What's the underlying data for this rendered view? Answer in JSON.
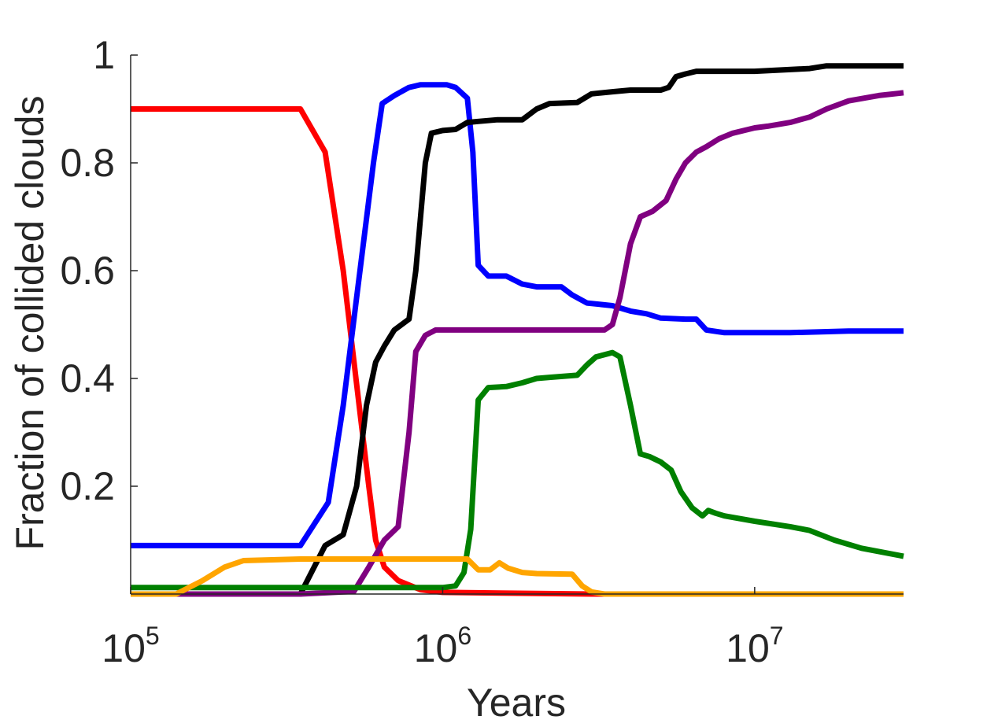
{
  "chart_data": {
    "type": "line",
    "title": "",
    "xlabel": "Years",
    "ylabel": "Fraction of collided clouds",
    "xscale": "log",
    "xlim": [
      100000,
      30000000
    ],
    "ylim": [
      0,
      1
    ],
    "x_ticks": [
      {
        "value": 100000,
        "base": "10",
        "exp": "5"
      },
      {
        "value": 1000000,
        "base": "10",
        "exp": "6"
      },
      {
        "value": 10000000,
        "base": "10",
        "exp": "7"
      }
    ],
    "y_ticks": [
      {
        "value": 0.2,
        "label": "0.2"
      },
      {
        "value": 0.4,
        "label": "0.4"
      },
      {
        "value": 0.6,
        "label": "0.6"
      },
      {
        "value": 0.8,
        "label": "0.8"
      },
      {
        "value": 1,
        "label": "1"
      }
    ],
    "grid": false,
    "legend": "none",
    "series": [
      {
        "color": "#ff0000",
        "points": [
          [
            100000,
            0.9
          ],
          [
            350000,
            0.9
          ],
          [
            420000,
            0.82
          ],
          [
            480000,
            0.6
          ],
          [
            540000,
            0.35
          ],
          [
            580000,
            0.2
          ],
          [
            610000,
            0.1
          ],
          [
            650000,
            0.05
          ],
          [
            720000,
            0.025
          ],
          [
            850000,
            0.008
          ],
          [
            1000000,
            0.003
          ],
          [
            3000000,
            0.0
          ],
          [
            30000000,
            0.0
          ]
        ]
      },
      {
        "color": "#0000ff",
        "points": [
          [
            100000,
            0.09
          ],
          [
            350000,
            0.09
          ],
          [
            430000,
            0.17
          ],
          [
            480000,
            0.35
          ],
          [
            530000,
            0.55
          ],
          [
            600000,
            0.8
          ],
          [
            640000,
            0.91
          ],
          [
            700000,
            0.925
          ],
          [
            780000,
            0.94
          ],
          [
            850000,
            0.945
          ],
          [
            950000,
            0.945
          ],
          [
            1030000,
            0.945
          ],
          [
            1100000,
            0.94
          ],
          [
            1200000,
            0.92
          ],
          [
            1250000,
            0.82
          ],
          [
            1300000,
            0.61
          ],
          [
            1400000,
            0.59
          ],
          [
            1600000,
            0.59
          ],
          [
            1800000,
            0.575
          ],
          [
            2000000,
            0.57
          ],
          [
            2400000,
            0.57
          ],
          [
            2600000,
            0.555
          ],
          [
            2900000,
            0.54
          ],
          [
            3500000,
            0.535
          ],
          [
            4000000,
            0.525
          ],
          [
            4500000,
            0.52
          ],
          [
            5000000,
            0.512
          ],
          [
            6000000,
            0.51
          ],
          [
            6500000,
            0.51
          ],
          [
            7000000,
            0.49
          ],
          [
            8000000,
            0.485
          ],
          [
            10000000,
            0.485
          ],
          [
            13000000,
            0.485
          ],
          [
            20000000,
            0.488
          ],
          [
            30000000,
            0.488
          ]
        ]
      },
      {
        "color": "#000000",
        "points": [
          [
            100000,
            0.0
          ],
          [
            350000,
            0.0
          ],
          [
            420000,
            0.09
          ],
          [
            480000,
            0.11
          ],
          [
            530000,
            0.2
          ],
          [
            570000,
            0.35
          ],
          [
            610000,
            0.43
          ],
          [
            650000,
            0.46
          ],
          [
            700000,
            0.49
          ],
          [
            780000,
            0.51
          ],
          [
            820000,
            0.6
          ],
          [
            880000,
            0.8
          ],
          [
            920000,
            0.855
          ],
          [
            1000000,
            0.86
          ],
          [
            1100000,
            0.862
          ],
          [
            1200000,
            0.875
          ],
          [
            1300000,
            0.877
          ],
          [
            1500000,
            0.88
          ],
          [
            1800000,
            0.88
          ],
          [
            2000000,
            0.9
          ],
          [
            2200000,
            0.91
          ],
          [
            2700000,
            0.912
          ],
          [
            3000000,
            0.928
          ],
          [
            3500000,
            0.932
          ],
          [
            4000000,
            0.935
          ],
          [
            5000000,
            0.935
          ],
          [
            5300000,
            0.94
          ],
          [
            5600000,
            0.96
          ],
          [
            6000000,
            0.965
          ],
          [
            6500000,
            0.97
          ],
          [
            10000000,
            0.97
          ],
          [
            15000000,
            0.975
          ],
          [
            17000000,
            0.98
          ],
          [
            30000000,
            0.98
          ]
        ]
      },
      {
        "color": "#800080",
        "points": [
          [
            100000,
            0.0
          ],
          [
            350000,
            0.0
          ],
          [
            520000,
            0.005
          ],
          [
            580000,
            0.05
          ],
          [
            650000,
            0.1
          ],
          [
            720000,
            0.125
          ],
          [
            780000,
            0.3
          ],
          [
            820000,
            0.45
          ],
          [
            880000,
            0.48
          ],
          [
            950000,
            0.49
          ],
          [
            1200000,
            0.49
          ],
          [
            2000000,
            0.49
          ],
          [
            3000000,
            0.49
          ],
          [
            3300000,
            0.49
          ],
          [
            3500000,
            0.5
          ],
          [
            3700000,
            0.55
          ],
          [
            4000000,
            0.65
          ],
          [
            4300000,
            0.7
          ],
          [
            4700000,
            0.71
          ],
          [
            5200000,
            0.73
          ],
          [
            5600000,
            0.77
          ],
          [
            6000000,
            0.8
          ],
          [
            6500000,
            0.82
          ],
          [
            7000000,
            0.83
          ],
          [
            7700000,
            0.845
          ],
          [
            8500000,
            0.855
          ],
          [
            10000000,
            0.865
          ],
          [
            11000000,
            0.868
          ],
          [
            13000000,
            0.875
          ],
          [
            15000000,
            0.885
          ],
          [
            17000000,
            0.9
          ],
          [
            20000000,
            0.915
          ],
          [
            25000000,
            0.925
          ],
          [
            30000000,
            0.93
          ]
        ]
      },
      {
        "color": "#008000",
        "points": [
          [
            100000,
            0.012
          ],
          [
            1000000,
            0.012
          ],
          [
            1100000,
            0.015
          ],
          [
            1170000,
            0.04
          ],
          [
            1230000,
            0.12
          ],
          [
            1300000,
            0.36
          ],
          [
            1400000,
            0.383
          ],
          [
            1600000,
            0.385
          ],
          [
            1800000,
            0.392
          ],
          [
            2000000,
            0.4
          ],
          [
            2200000,
            0.402
          ],
          [
            2700000,
            0.406
          ],
          [
            2900000,
            0.425
          ],
          [
            3100000,
            0.44
          ],
          [
            3500000,
            0.448
          ],
          [
            3700000,
            0.44
          ],
          [
            4000000,
            0.35
          ],
          [
            4300000,
            0.26
          ],
          [
            4600000,
            0.255
          ],
          [
            5000000,
            0.245
          ],
          [
            5400000,
            0.23
          ],
          [
            5800000,
            0.19
          ],
          [
            6300000,
            0.16
          ],
          [
            6800000,
            0.145
          ],
          [
            7100000,
            0.155
          ],
          [
            7500000,
            0.15
          ],
          [
            8000000,
            0.145
          ],
          [
            10000000,
            0.135
          ],
          [
            13000000,
            0.125
          ],
          [
            15000000,
            0.118
          ],
          [
            18000000,
            0.1
          ],
          [
            22000000,
            0.085
          ],
          [
            30000000,
            0.07
          ]
        ]
      },
      {
        "color": "#ffa500",
        "points": [
          [
            100000,
            0.0
          ],
          [
            140000,
            0.0
          ],
          [
            170000,
            0.025
          ],
          [
            200000,
            0.05
          ],
          [
            230000,
            0.062
          ],
          [
            350000,
            0.065
          ],
          [
            1200000,
            0.065
          ],
          [
            1300000,
            0.045
          ],
          [
            1420000,
            0.045
          ],
          [
            1520000,
            0.058
          ],
          [
            1620000,
            0.048
          ],
          [
            1800000,
            0.04
          ],
          [
            2000000,
            0.038
          ],
          [
            2600000,
            0.037
          ],
          [
            2800000,
            0.015
          ],
          [
            3000000,
            0.004
          ],
          [
            3300000,
            0.0
          ],
          [
            30000000,
            0.0
          ]
        ]
      }
    ]
  }
}
